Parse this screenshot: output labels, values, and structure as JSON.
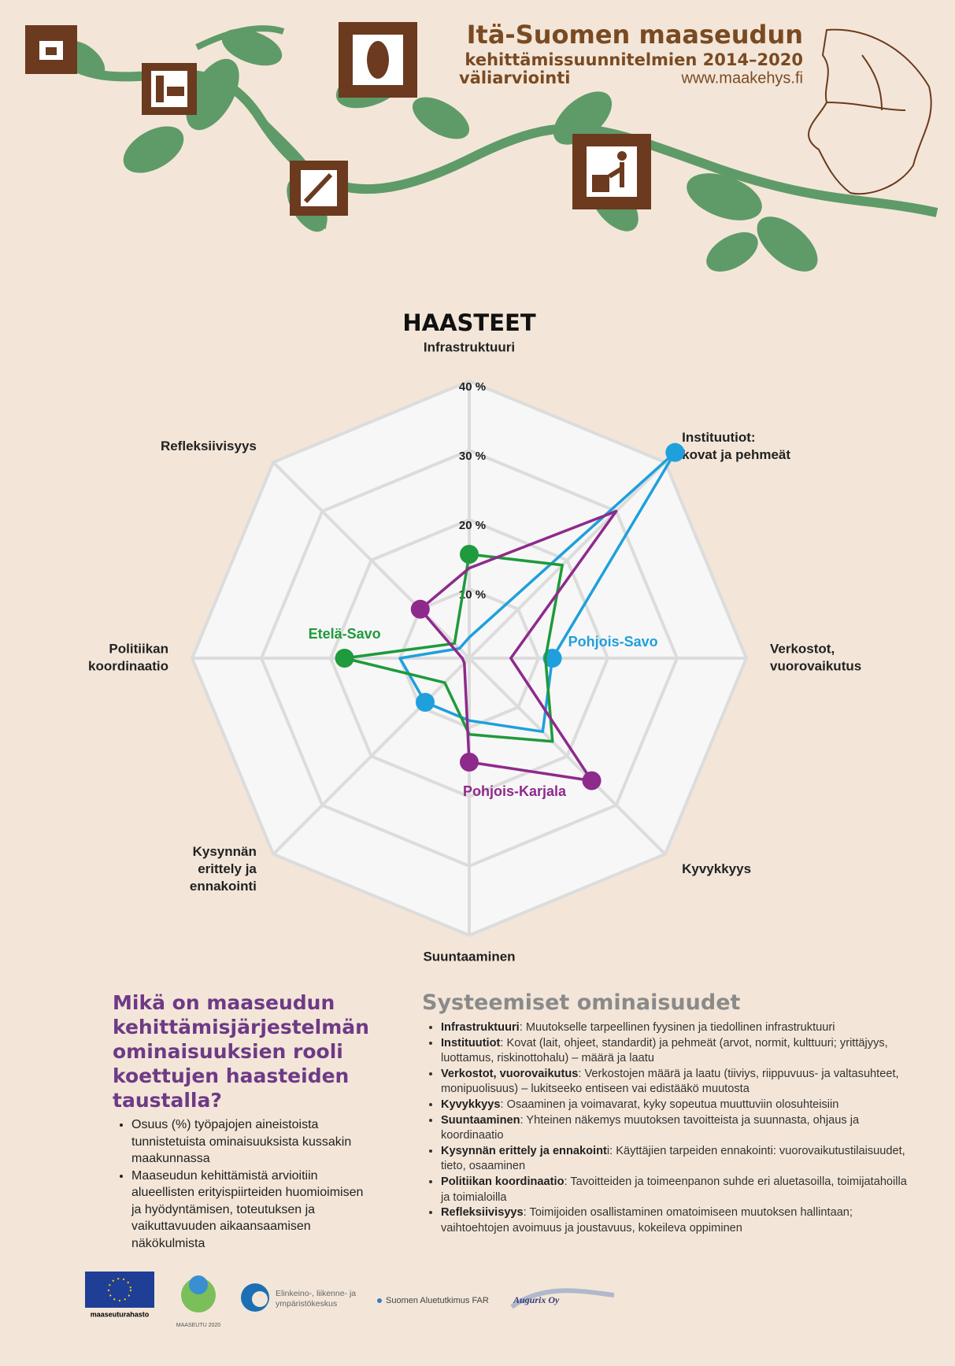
{
  "header": {
    "title": "Itä-Suomen maaseudun",
    "subtitle": "kehittämissuunnitelmien 2014–2020",
    "subtitle2": "väliarviointi",
    "url": "www.maakehys.fi"
  },
  "chart_data": {
    "type": "radar",
    "title": "HAASTEET",
    "categories": [
      [
        "Infrastruktuuri"
      ],
      [
        "Instituutiot:",
        "kovat ja pehmeät"
      ],
      [
        "Verkostot,",
        "vuorovaikutus"
      ],
      [
        "Kyvykkyys"
      ],
      [
        "Suuntaaminen"
      ],
      [
        "Kysynnän",
        "erittely ja",
        "ennakointi"
      ],
      [
        "Politiikan",
        "koordinaatio"
      ],
      [
        "Refleksiivisyys"
      ]
    ],
    "rlim": [
      0,
      40
    ],
    "rticks": [
      {
        "value": 10,
        "label": "10 %"
      },
      {
        "value": 20,
        "label": "20 %"
      },
      {
        "value": 30,
        "label": "30 %"
      },
      {
        "value": 40,
        "label": "40 %"
      }
    ],
    "series": [
      {
        "name": "Pohjois-Savo",
        "color": "#1ea0dc",
        "values": [
          3,
          42,
          12,
          15,
          9,
          9,
          10,
          2
        ],
        "markers": [
          2,
          1,
          5
        ]
      },
      {
        "name": "Etelä-Savo",
        "color": "#1f9a3c",
        "values": [
          15,
          19,
          11,
          17,
          11,
          5,
          18,
          3
        ],
        "markers": [
          6,
          0
        ]
      },
      {
        "name": "Pohjois-Karjala",
        "color": "#8e2a8c",
        "values": [
          13,
          30,
          6,
          25,
          15,
          1,
          1,
          10
        ],
        "markers": [
          4,
          3,
          7
        ]
      }
    ]
  },
  "question": {
    "heading": [
      "Mikä on maaseudun",
      "kehittämisjärjestelmän",
      "ominaisuuksien rooli",
      "koettujen haasteiden",
      "taustalla?"
    ],
    "bullets": [
      "Osuus (%) työpajojen aineistoista tunnistetuista ominaisuuksista kussakin maakunnassa",
      "Maaseudun kehittämistä arvioitiin alueellisten erityispiirteiden huomioimisen ja hyödyntämisen, toteutuksen ja vaikuttavuuden aikaansaamisen näkökulmista"
    ]
  },
  "features": {
    "heading": "Systeemiset ominaisuudet",
    "items": [
      {
        "term": "Infrastruktuuri",
        "text": ": Muutokselle tarpeellinen fyysinen ja tiedollinen infrastruktuuri"
      },
      {
        "term": "Instituutiot",
        "text": ": Kovat (lait, ohjeet, standardit) ja pehmeät (arvot, normit, kulttuuri; yrittäjyys, luottamus, riskinottohalu) – määrä ja laatu"
      },
      {
        "term": "Verkostot, vuorovaikutus",
        "text": ": Verkostojen määrä ja laatu (tiiviys, riippuvuus- ja valtasuhteet, monipuolisuus) – lukitseeko entiseen vai edistääkö muutosta"
      },
      {
        "term": "Kyvykkyys",
        "text": ": Osaaminen ja voimavarat, kyky sopeutua muuttuviin olosuhteisiin"
      },
      {
        "term": "Suuntaaminen",
        "text": ": Yhteinen näkemys muutoksen tavoitteista ja suunnasta, ohjaus ja koordinaatio"
      },
      {
        "term": "Kysynnän erittely ja ennakoint",
        "text": "i: Käyttäjien tarpeiden ennakointi: vuorovaikutustilaisuudet, tieto, osaaminen"
      },
      {
        "term": "Politiikan koordinaatio",
        "text": ": Tavoitteiden ja toimeenpanon suhde eri aluetasoilla, toimijatahoilla ja toimialoilla"
      },
      {
        "term": "Refleksiivisyys",
        "text": ": Toimijoiden osallistaminen omatoimiseen muutoksen hallintaan; vaihtoehtojen avoimuus ja joustavuus, kokeileva oppiminen"
      }
    ]
  },
  "footer": {
    "eu": "maaseuturahasto",
    "maaseutu": "MAASEUTU 2020",
    "ely1": "Elinkeino-, liikenne- ja",
    "ely2": "ympäristökeskus",
    "far": "Suomen Aluetutkimus FAR",
    "augurix": "Augurix Oy"
  }
}
